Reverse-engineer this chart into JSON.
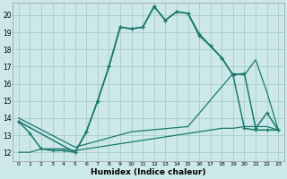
{
  "xlabel": "Humidex (Indice chaleur)",
  "xlim": [
    -0.5,
    23.5
  ],
  "ylim": [
    11.5,
    20.7
  ],
  "xticks": [
    0,
    1,
    2,
    3,
    4,
    5,
    6,
    7,
    8,
    9,
    10,
    11,
    12,
    13,
    14,
    15,
    16,
    17,
    18,
    19,
    20,
    21,
    22,
    23
  ],
  "yticks": [
    12,
    13,
    14,
    15,
    16,
    17,
    18,
    19,
    20
  ],
  "bg_color": "#cce8e8",
  "line_color": "#1a7a6e",
  "grid_color": "#aacccc",
  "lines": [
    {
      "x": [
        0,
        1,
        2,
        3,
        4,
        5,
        6,
        7,
        8,
        9,
        10,
        11,
        12,
        13,
        14,
        15,
        16,
        17,
        18,
        19,
        20,
        21,
        22,
        23
      ],
      "y": [
        12.0,
        12.0,
        12.2,
        12.2,
        12.2,
        12.1,
        12.2,
        12.3,
        12.4,
        12.5,
        12.6,
        12.7,
        12.8,
        12.9,
        13.0,
        13.1,
        13.2,
        13.3,
        13.4,
        13.4,
        13.5,
        13.5,
        13.5,
        13.3
      ],
      "marker": false,
      "linewidth": 0.9
    },
    {
      "x": [
        0,
        1,
        2,
        3,
        4,
        5,
        6,
        7,
        8,
        9,
        10,
        11,
        12,
        13,
        14,
        15,
        16,
        17,
        18,
        19,
        20,
        21,
        22,
        23
      ],
      "y": [
        13.8,
        13.1,
        12.2,
        12.1,
        12.1,
        12.0,
        13.2,
        15.0,
        17.0,
        19.3,
        19.2,
        19.3,
        20.5,
        19.7,
        20.2,
        20.1,
        18.8,
        18.2,
        17.5,
        16.5,
        13.4,
        13.3,
        13.3,
        13.3
      ],
      "marker": true,
      "linewidth": 1.1
    },
    {
      "x": [
        0,
        5,
        10,
        15,
        19,
        20,
        21,
        22,
        23
      ],
      "y": [
        14.0,
        12.3,
        13.2,
        13.5,
        16.6,
        16.5,
        17.4,
        15.5,
        13.3
      ],
      "marker": false,
      "linewidth": 0.9
    },
    {
      "x": [
        0,
        5,
        6,
        7,
        8,
        9,
        10,
        11,
        12,
        13,
        14,
        15,
        16,
        17,
        18,
        19,
        20,
        21,
        22,
        23
      ],
      "y": [
        13.8,
        12.0,
        13.2,
        15.0,
        17.0,
        19.3,
        19.2,
        19.3,
        20.5,
        19.7,
        20.2,
        20.1,
        18.9,
        18.2,
        17.5,
        16.5,
        16.6,
        13.4,
        14.3,
        13.3
      ],
      "marker": true,
      "linewidth": 1.1
    }
  ]
}
